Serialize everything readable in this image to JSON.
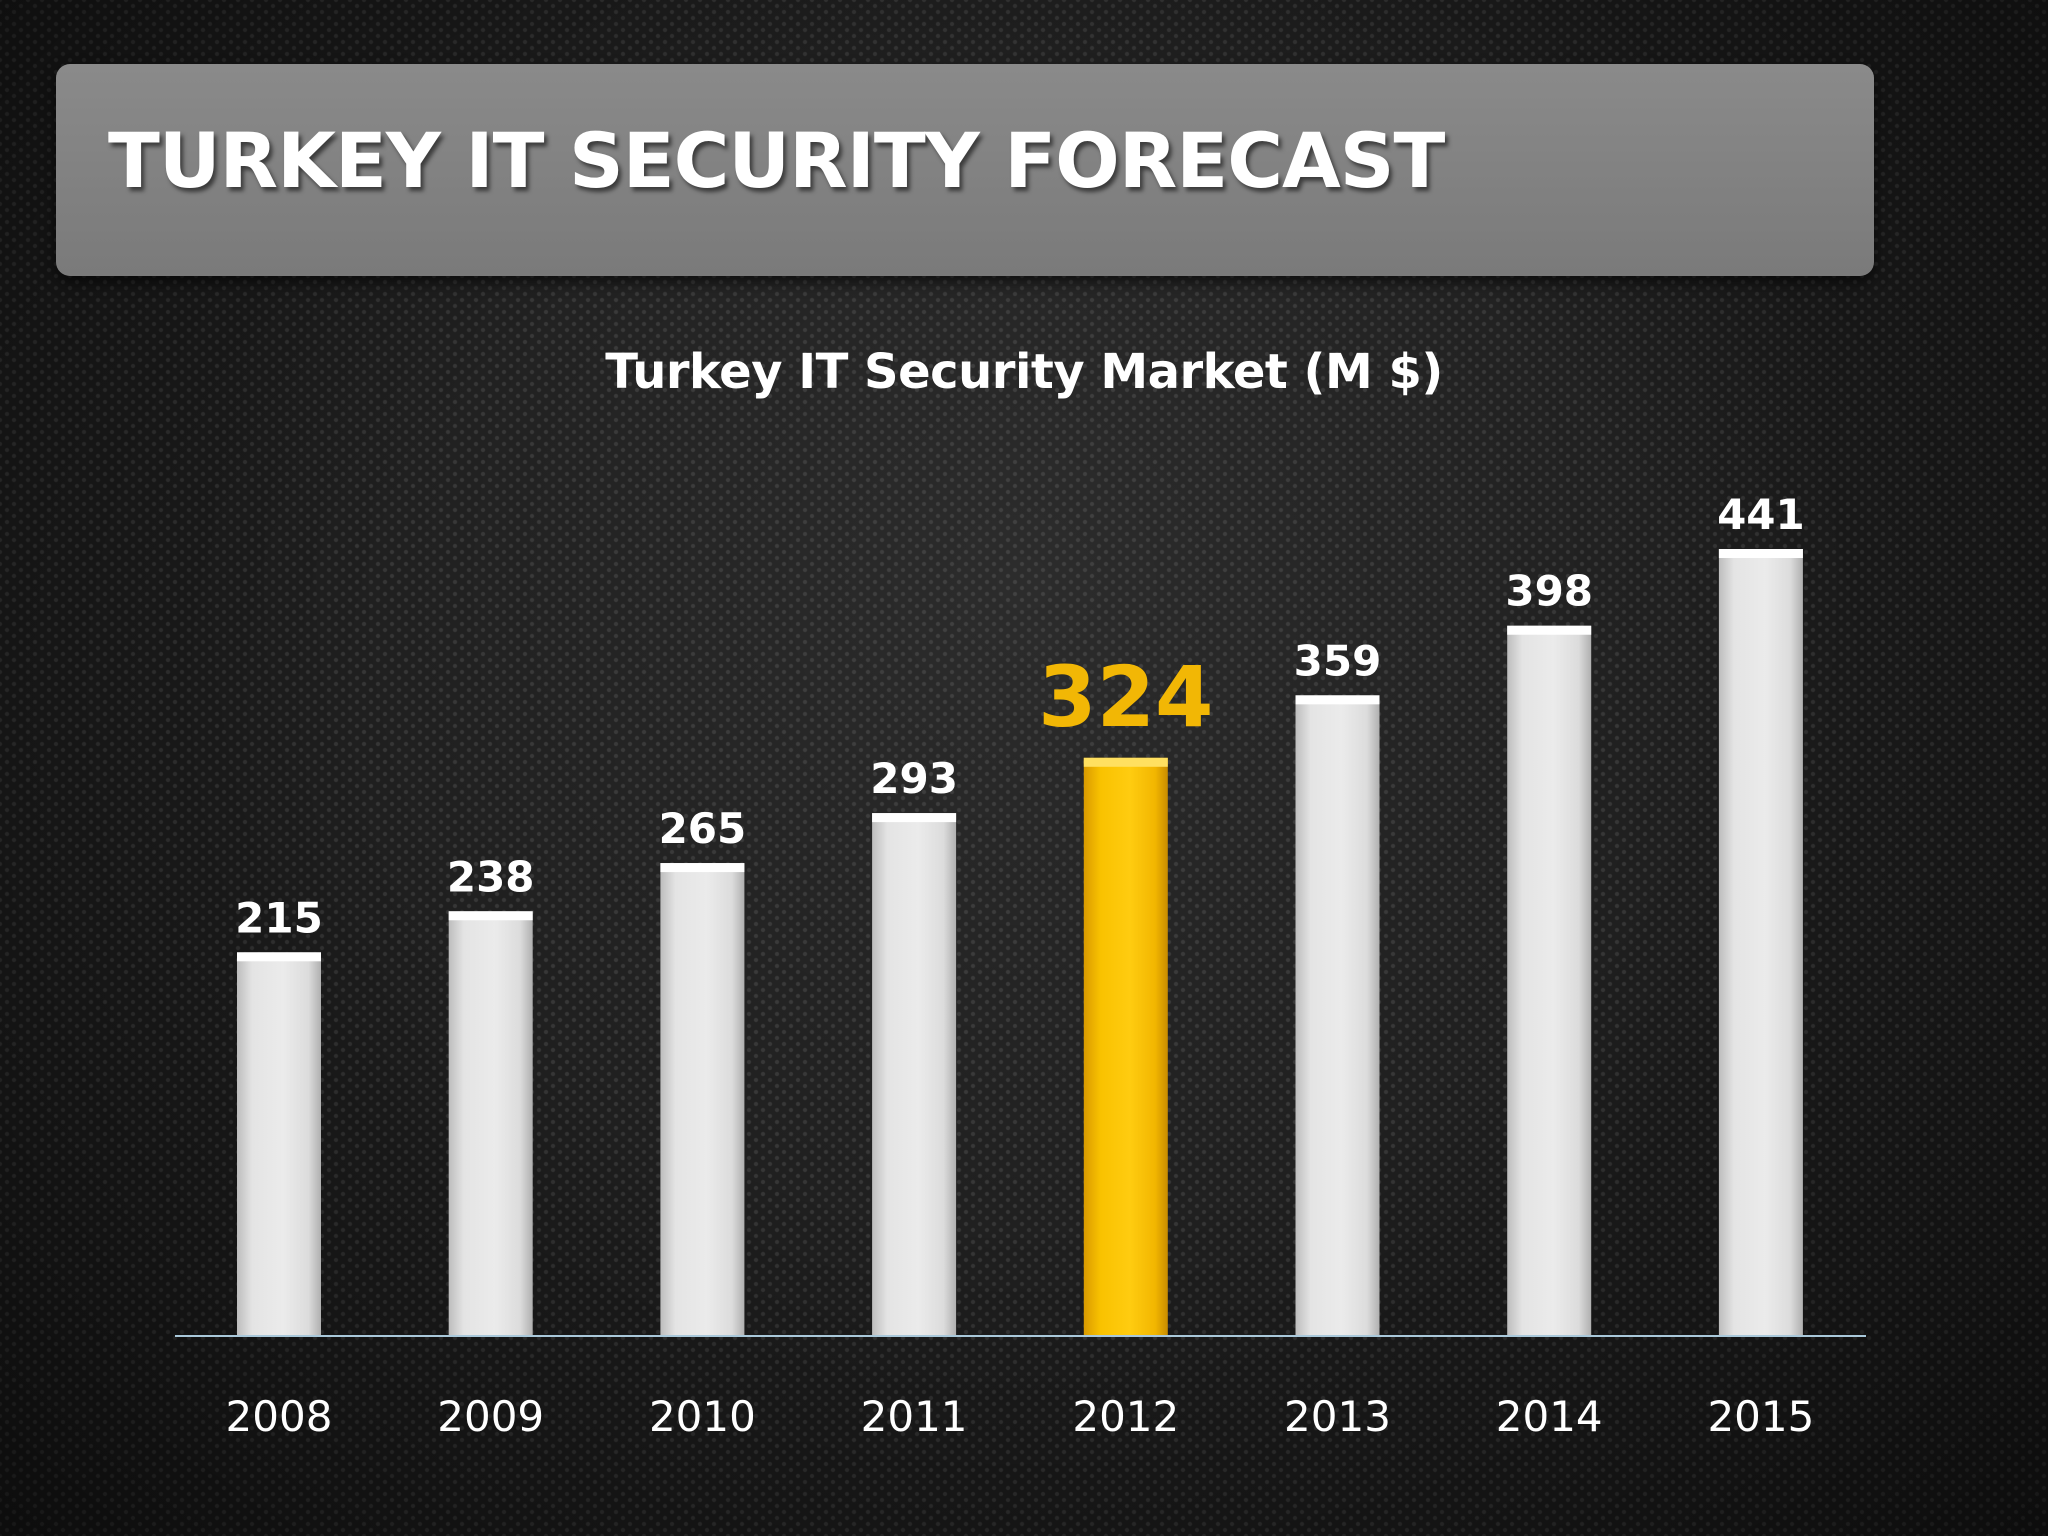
{
  "slide": {
    "title": "TURKEY IT SECURITY FORECAST"
  },
  "chart_data": {
    "type": "bar",
    "title": "Turkey IT Security Market (M $)",
    "categories": [
      "2008",
      "2009",
      "2010",
      "2011",
      "2012",
      "2013",
      "2014",
      "2015"
    ],
    "values": [
      215,
      238,
      265,
      293,
      324,
      359,
      398,
      441
    ],
    "highlight_category": "2012",
    "colors": {
      "bar": "#e6e6e6",
      "highlight": "#f6bb00",
      "label": "#ffffff",
      "highlight_label": "#f2b705",
      "axis": "#a9c8da"
    },
    "xlabel": "",
    "ylabel": "",
    "ylim": [
      0,
      441
    ],
    "grid": false,
    "legend": "none"
  }
}
